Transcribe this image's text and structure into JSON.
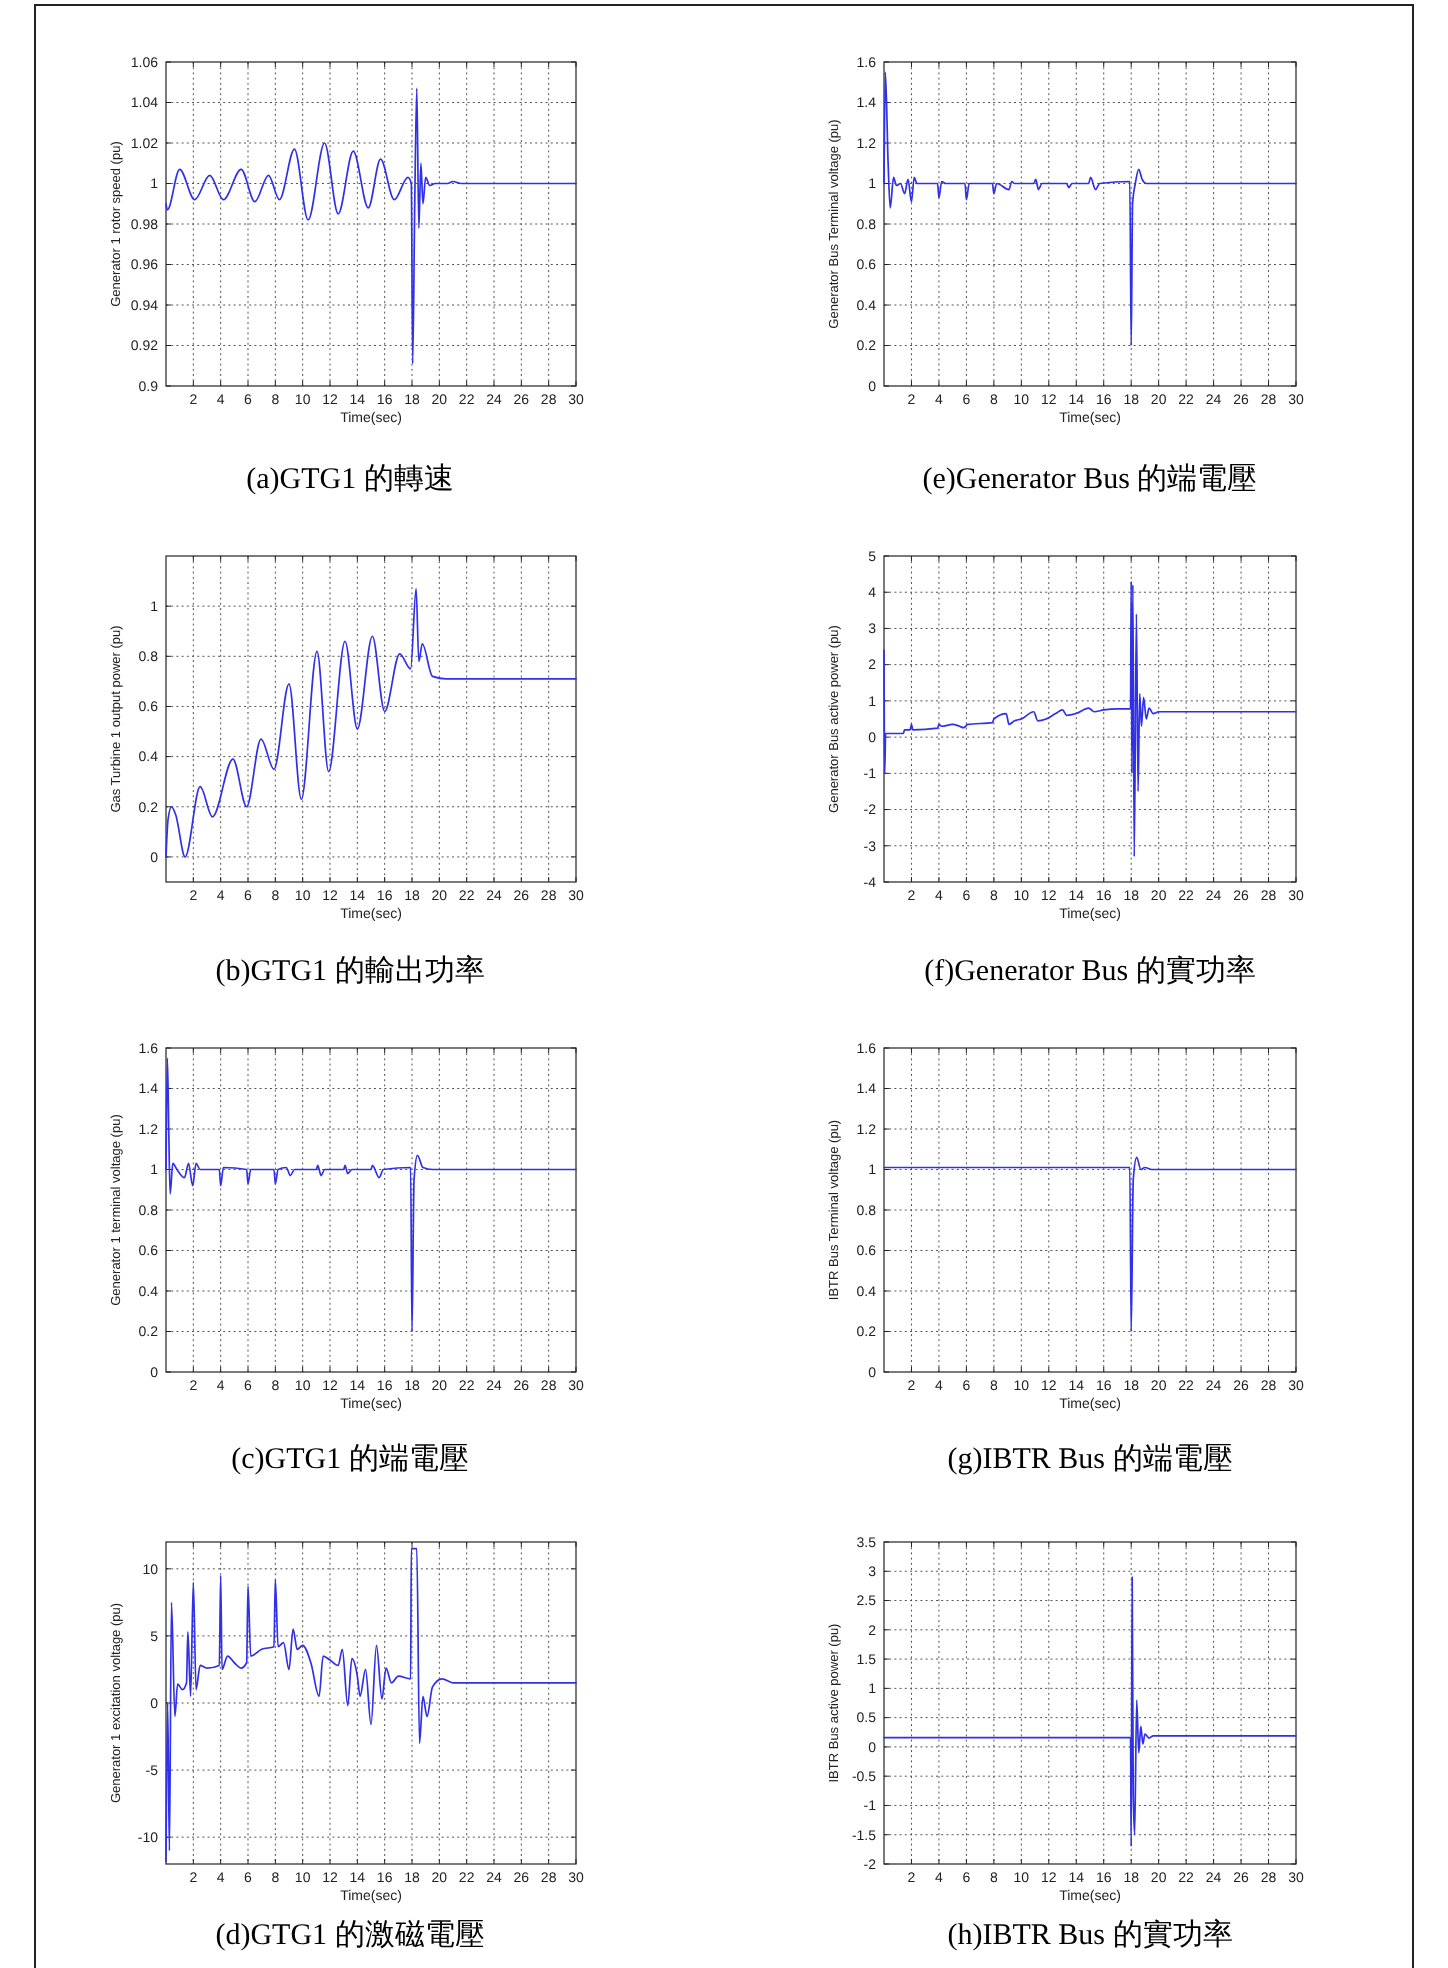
{
  "chart_data": [
    {
      "type": "line",
      "title": "(a)GTG1 的轉速",
      "xlabel": "Time(sec)",
      "ylabel": "Generator 1 rotor speed (pu)",
      "xlim": [
        0,
        30
      ],
      "xticks": [
        2,
        4,
        6,
        8,
        10,
        12,
        14,
        16,
        18,
        20,
        22,
        24,
        26,
        28,
        30
      ],
      "ylim": [
        0.9,
        1.06
      ],
      "yticks": [
        0.9,
        0.92,
        0.94,
        0.96,
        0.98,
        1,
        1.02,
        1.04,
        1.06
      ],
      "grid": true,
      "series": [
        {
          "color": "#3030e8",
          "x": [
            0,
            0.1,
            1.0,
            2.1,
            3.2,
            4.2,
            5.5,
            6.5,
            7.5,
            8.3,
            9.4,
            10.4,
            11.6,
            12.6,
            13.7,
            14.8,
            15.7,
            16.7,
            17.7,
            17.95,
            18.05,
            18.2,
            18.35,
            18.5,
            18.65,
            18.8,
            19.0,
            19.3,
            19.7,
            20.6,
            21.0,
            21.6,
            30
          ],
          "values": [
            0.99,
            0.987,
            1.007,
            0.992,
            1.004,
            0.992,
            1.007,
            0.991,
            1.004,
            0.992,
            1.017,
            0.982,
            1.02,
            0.985,
            1.016,
            0.988,
            1.012,
            0.992,
            1.003,
            1.0,
            0.911,
            0.99,
            1.047,
            0.978,
            1.01,
            0.99,
            1.003,
            0.999,
            1.0,
            1.0,
            1.001,
            1.0,
            1.0
          ]
        }
      ]
    },
    {
      "type": "line",
      "title": "(e)Generator Bus 的端電壓",
      "xlabel": "Time(sec)",
      "ylabel": "Generator Bus Terminal voltage (pu)",
      "xlim": [
        0,
        30
      ],
      "xticks": [
        2,
        4,
        6,
        8,
        10,
        12,
        14,
        16,
        18,
        20,
        22,
        24,
        26,
        28,
        30
      ],
      "ylim": [
        0,
        1.6
      ],
      "yticks": [
        0,
        0.2,
        0.4,
        0.6,
        0.8,
        1,
        1.2,
        1.4,
        1.6
      ],
      "grid": true,
      "series": [
        {
          "color": "#3030e8",
          "x": [
            0,
            0.1,
            0.3,
            0.45,
            0.7,
            0.9,
            1.2,
            1.5,
            1.75,
            2.0,
            2.2,
            2.4,
            3.9,
            4.0,
            4.2,
            4.5,
            5.9,
            6.0,
            6.2,
            7.9,
            8.0,
            8.2,
            9.1,
            9.3,
            9.5,
            10.9,
            11.05,
            11.25,
            11.5,
            13.3,
            13.45,
            13.7,
            14.9,
            15.05,
            15.4,
            15.7,
            17.9,
            18.0,
            18.1,
            18.3,
            18.55,
            18.8,
            19.1,
            30
          ],
          "values": [
            1.0,
            1.55,
            1.1,
            0.88,
            1.03,
            0.99,
            1.0,
            0.95,
            1.02,
            0.91,
            1.03,
            1.0,
            1.0,
            0.93,
            1.01,
            1.0,
            1.0,
            0.92,
            1.0,
            1.0,
            0.95,
            1.0,
            0.97,
            1.01,
            1.0,
            1.0,
            1.02,
            0.97,
            1.0,
            1.0,
            0.98,
            1.0,
            1.0,
            1.03,
            0.97,
            1.0,
            1.01,
            0.2,
            0.9,
            1.0,
            1.07,
            1.02,
            1.0,
            1.0
          ]
        }
      ]
    },
    {
      "type": "line",
      "title": "(b)GTG1 的輸出功率",
      "xlabel": "Time(sec)",
      "ylabel": "Gas Turbine 1 output power (pu)",
      "xlim": [
        0,
        30
      ],
      "xticks": [
        2,
        4,
        6,
        8,
        10,
        12,
        14,
        16,
        18,
        20,
        22,
        24,
        26,
        28,
        30
      ],
      "ylim": [
        -0.1,
        1.2
      ],
      "yticks": [
        0,
        0.2,
        0.4,
        0.6,
        0.8,
        1
      ],
      "grid": true,
      "series": [
        {
          "color": "#3030e8",
          "x": [
            0,
            0.15,
            0.4,
            0.7,
            1.4,
            2.5,
            3.4,
            4.9,
            5.9,
            6.95,
            7.9,
            9.0,
            9.9,
            11.05,
            11.9,
            13.1,
            14.0,
            15.1,
            16.0,
            17.1,
            17.9,
            18.3,
            18.5,
            18.75,
            19.5,
            20.5,
            30
          ],
          "values": [
            0,
            0.15,
            0.2,
            0.17,
            0.0,
            0.28,
            0.16,
            0.39,
            0.2,
            0.47,
            0.35,
            0.69,
            0.23,
            0.82,
            0.34,
            0.86,
            0.51,
            0.88,
            0.58,
            0.81,
            0.75,
            1.07,
            0.78,
            0.85,
            0.72,
            0.71,
            0.71
          ]
        }
      ]
    },
    {
      "type": "line",
      "title": "(f)Generator Bus 的實功率",
      "xlabel": "Time(sec)",
      "ylabel": "Generator Bus active power (pu)",
      "xlim": [
        0,
        30
      ],
      "xticks": [
        2,
        4,
        6,
        8,
        10,
        12,
        14,
        16,
        18,
        20,
        22,
        24,
        26,
        28,
        30
      ],
      "ylim": [
        -4,
        5
      ],
      "yticks": [
        -4,
        -3,
        -2,
        -1,
        0,
        1,
        2,
        3,
        4,
        5
      ],
      "grid": true,
      "series": [
        {
          "color": "#3030e8",
          "x": [
            0,
            0.05,
            0.12,
            1.4,
            1.5,
            1.9,
            2.0,
            2.1,
            3.9,
            4.0,
            4.2,
            5.0,
            5.5,
            5.8,
            6.1,
            7.9,
            8.0,
            8.9,
            9.1,
            9.5,
            10.0,
            10.9,
            11.2,
            11.8,
            12.5,
            13.0,
            13.3,
            14.0,
            14.9,
            15.3,
            16.0,
            17.0,
            17.95,
            18.0,
            18.05,
            18.12,
            18.22,
            18.38,
            18.5,
            18.62,
            18.75,
            18.9,
            19.1,
            19.3,
            19.6,
            20.0,
            30
          ],
          "values": [
            2.4,
            -1.0,
            0.1,
            0.1,
            0.2,
            0.2,
            0.35,
            0.2,
            0.25,
            0.35,
            0.3,
            0.35,
            0.3,
            0.26,
            0.35,
            0.4,
            0.5,
            0.65,
            0.35,
            0.45,
            0.5,
            0.7,
            0.45,
            0.5,
            0.65,
            0.75,
            0.6,
            0.65,
            0.8,
            0.7,
            0.75,
            0.78,
            0.78,
            4.3,
            -1.0,
            4.2,
            -3.3,
            3.4,
            -1.5,
            1.2,
            0.3,
            1.1,
            0.5,
            0.8,
            0.65,
            0.7,
            0.7
          ]
        }
      ]
    },
    {
      "type": "line",
      "title": "(c)GTG1 的端電壓",
      "xlabel": "Time(sec)",
      "ylabel": "Generator 1 terminal voltage (pu)",
      "xlim": [
        0,
        30
      ],
      "xticks": [
        2,
        4,
        6,
        8,
        10,
        12,
        14,
        16,
        18,
        20,
        22,
        24,
        26,
        28,
        30
      ],
      "ylim": [
        0,
        1.6
      ],
      "yticks": [
        0,
        0.2,
        0.4,
        0.6,
        0.8,
        1,
        1.2,
        1.4,
        1.6
      ],
      "grid": true,
      "series": [
        {
          "color": "#3030e8",
          "x": [
            0,
            0.1,
            0.2,
            0.3,
            0.5,
            0.8,
            1.35,
            1.65,
            1.95,
            2.2,
            2.5,
            3.9,
            4.0,
            4.2,
            5.9,
            6.0,
            6.2,
            7.9,
            8.0,
            8.2,
            8.8,
            9.1,
            9.4,
            11.0,
            11.1,
            11.35,
            11.6,
            13.0,
            13.1,
            13.3,
            13.6,
            15.0,
            15.1,
            15.6,
            15.9,
            17.9,
            18.0,
            18.15,
            18.4,
            18.8,
            19.5,
            30
          ],
          "values": [
            1.0,
            1.55,
            1.2,
            0.88,
            1.03,
            1.0,
            0.96,
            1.03,
            0.92,
            1.03,
            1.0,
            1.0,
            0.92,
            1.01,
            1.0,
            0.93,
            1.0,
            1.0,
            0.93,
            1.0,
            1.01,
            0.97,
            1.0,
            1.0,
            1.02,
            0.97,
            1.0,
            1.0,
            1.02,
            0.98,
            1.0,
            1.0,
            1.02,
            0.96,
            1.0,
            1.01,
            0.2,
            0.95,
            1.07,
            1.01,
            1.0,
            1.0
          ]
        }
      ]
    },
    {
      "type": "line",
      "title": "(g)IBTR Bus 的端電壓",
      "xlabel": "Time(sec)",
      "ylabel": "IBTR Bus Terminal voltage (pu)",
      "xlim": [
        0,
        30
      ],
      "xticks": [
        2,
        4,
        6,
        8,
        10,
        12,
        14,
        16,
        18,
        20,
        22,
        24,
        26,
        28,
        30
      ],
      "ylim": [
        0,
        1.6
      ],
      "yticks": [
        0,
        0.2,
        0.4,
        0.6,
        0.8,
        1,
        1.2,
        1.4,
        1.6
      ],
      "grid": true,
      "series": [
        {
          "color": "#3030e8",
          "x": [
            0,
            17.9,
            18.0,
            18.15,
            18.4,
            18.7,
            19.0,
            19.5,
            30
          ],
          "values": [
            1.01,
            1.01,
            0.2,
            0.95,
            1.06,
            1.0,
            1.01,
            1.0,
            1.0
          ]
        }
      ]
    },
    {
      "type": "line",
      "title": "(d)GTG1 的激磁電壓",
      "xlabel": "Time(sec)",
      "ylabel": "Generator 1 excitation voltage (pu)",
      "xlim": [
        0,
        30
      ],
      "xticks": [
        2,
        4,
        6,
        8,
        10,
        12,
        14,
        16,
        18,
        20,
        22,
        24,
        26,
        28,
        30
      ],
      "ylim": [
        -12,
        12
      ],
      "yticks": [
        -10,
        -5,
        0,
        5,
        10
      ],
      "grid": true,
      "series": [
        {
          "color": "#3030e8",
          "x": [
            0,
            0.12,
            0.25,
            0.4,
            0.65,
            0.85,
            1.2,
            1.5,
            1.6,
            1.8,
            2.0,
            2.2,
            2.5,
            3.0,
            3.9,
            4.0,
            4.1,
            4.5,
            5.0,
            5.5,
            5.9,
            6.0,
            6.2,
            7.0,
            7.9,
            8.0,
            8.2,
            8.6,
            9.0,
            9.3,
            9.6,
            10.0,
            10.6,
            11.2,
            11.5,
            12.0,
            12.6,
            12.9,
            13.3,
            13.6,
            14.0,
            14.2,
            14.6,
            15.0,
            15.4,
            15.8,
            16.1,
            16.5,
            17.0,
            17.9,
            17.95,
            18.35,
            18.55,
            18.8,
            19.1,
            19.5,
            20.2,
            21.0,
            30
          ],
          "values": [
            -11.8,
            0.0,
            -11.0,
            7.5,
            -1.0,
            1.4,
            1.0,
            1.5,
            5.3,
            0.5,
            9.0,
            1.0,
            2.8,
            2.6,
            2.8,
            9.5,
            2.5,
            3.5,
            3.0,
            2.6,
            3.0,
            8.7,
            3.5,
            4.0,
            4.2,
            9.2,
            4.2,
            4.5,
            2.5,
            5.5,
            4.0,
            4.3,
            3.0,
            0.5,
            3.5,
            3.2,
            2.8,
            4.0,
            -0.2,
            3.3,
            2.0,
            0.5,
            2.5,
            -1.6,
            4.3,
            0.3,
            2.6,
            1.5,
            2.0,
            1.8,
            11.5,
            11.5,
            -3.0,
            0.5,
            -1.0,
            1.2,
            1.8,
            1.5,
            1.5
          ]
        }
      ]
    },
    {
      "type": "line",
      "title": "(h)IBTR Bus 的實功率",
      "xlabel": "Time(sec)",
      "ylabel": "IBTR Bus active power (pu)",
      "xlim": [
        0,
        30
      ],
      "xticks": [
        2,
        4,
        6,
        8,
        10,
        12,
        14,
        16,
        18,
        20,
        22,
        24,
        26,
        28,
        30
      ],
      "ylim": [
        -2,
        3.5
      ],
      "yticks": [
        -2,
        -1.5,
        -1,
        -0.5,
        0,
        0.5,
        1,
        1.5,
        2,
        2.5,
        3,
        3.5
      ],
      "grid": true,
      "series": [
        {
          "color": "#3030e8",
          "x": [
            0,
            17.95,
            18.0,
            18.07,
            18.15,
            18.25,
            18.4,
            18.55,
            18.7,
            18.85,
            19.0,
            19.3,
            19.6,
            30
          ],
          "values": [
            0.16,
            0.16,
            -1.7,
            2.9,
            -0.8,
            -1.5,
            0.8,
            -0.1,
            0.35,
            0.05,
            0.22,
            0.15,
            0.19,
            0.19
          ]
        }
      ]
    }
  ]
}
